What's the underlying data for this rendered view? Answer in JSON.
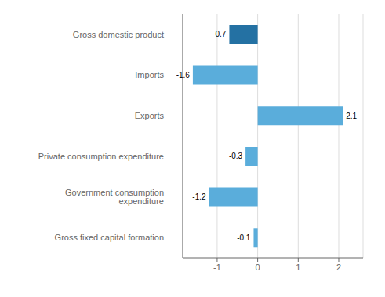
{
  "chart_data": {
    "type": "bar",
    "orientation": "horizontal",
    "categories": [
      "Gross fixed capital formation",
      "Government consumption expenditure",
      "Private consumption expenditure",
      "Exports",
      "Imports",
      "Gross domestic product"
    ],
    "values": [
      -0.1,
      -1.2,
      -0.3,
      2.1,
      -1.6,
      -0.7
    ],
    "colors": [
      "#5aaddb",
      "#5aaddb",
      "#5aaddb",
      "#5aaddb",
      "#5aaddb",
      "#2471a3"
    ],
    "xlim": [
      -1.85,
      2.6
    ],
    "xticks": [
      -1,
      0,
      1,
      2
    ],
    "grid": true,
    "data_labels": true
  }
}
